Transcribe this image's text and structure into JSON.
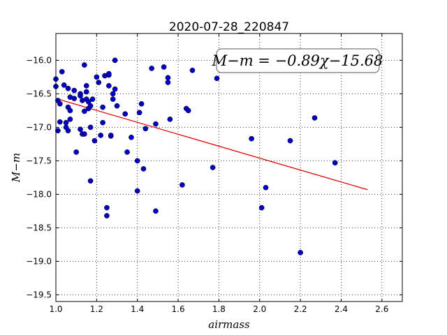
{
  "chart_data": {
    "type": "scatter",
    "title": "2020-07-28_220847",
    "xlabel": "airmass",
    "ylabel": "M−m",
    "xlim": [
      1.0,
      2.7
    ],
    "ylim": [
      -19.6,
      -15.6
    ],
    "y_inverted": false,
    "grid": true,
    "xticks": [
      1.0,
      1.2,
      1.4,
      1.6,
      1.8,
      2.0,
      2.2,
      2.4,
      2.6
    ],
    "xtick_labels": [
      "1.0",
      "1.2",
      "1.4",
      "1.6",
      "1.8",
      "2.0",
      "2.2",
      "2.4",
      "2.6"
    ],
    "yticks": [
      -16.0,
      -16.5,
      -17.0,
      -17.5,
      -18.0,
      -18.5,
      -19.0,
      -19.5
    ],
    "ytick_labels": [
      "−16.0",
      "−16.5",
      "−17.0",
      "−17.5",
      "−18.0",
      "−18.5",
      "−19.0",
      "−19.5"
    ],
    "annotation": "M−m = −0.89χ−15.68",
    "annotation_placement": "top-right",
    "fit": {
      "slope": -0.89,
      "intercept": -15.68,
      "x_start": 1.01,
      "x_end": 2.53
    },
    "colors": {
      "points": "#0000c8",
      "fit_line": "#dd0000"
    },
    "points": [
      {
        "x": 1.0,
        "y": -16.28
      },
      {
        "x": 1.0,
        "y": -16.39
      },
      {
        "x": 1.01,
        "y": -16.6
      },
      {
        "x": 1.01,
        "y": -17.05
      },
      {
        "x": 1.02,
        "y": -16.65
      },
      {
        "x": 1.02,
        "y": -16.92
      },
      {
        "x": 1.03,
        "y": -16.17
      },
      {
        "x": 1.04,
        "y": -16.37
      },
      {
        "x": 1.05,
        "y": -16.93
      },
      {
        "x": 1.05,
        "y": -17.0
      },
      {
        "x": 1.06,
        "y": -17.05
      },
      {
        "x": 1.06,
        "y": -16.42
      },
      {
        "x": 1.06,
        "y": -16.7
      },
      {
        "x": 1.07,
        "y": -16.88
      },
      {
        "x": 1.07,
        "y": -16.75
      },
      {
        "x": 1.07,
        "y": -16.55
      },
      {
        "x": 1.09,
        "y": -16.57
      },
      {
        "x": 1.09,
        "y": -16.45
      },
      {
        "x": 1.1,
        "y": -17.37
      },
      {
        "x": 1.12,
        "y": -16.5
      },
      {
        "x": 1.12,
        "y": -16.53
      },
      {
        "x": 1.12,
        "y": -17.03
      },
      {
        "x": 1.13,
        "y": -17.1
      },
      {
        "x": 1.13,
        "y": -16.6
      },
      {
        "x": 1.14,
        "y": -17.1
      },
      {
        "x": 1.14,
        "y": -16.07
      },
      {
        "x": 1.14,
        "y": -16.76
      },
      {
        "x": 1.15,
        "y": -16.58
      },
      {
        "x": 1.15,
        "y": -16.47
      },
      {
        "x": 1.15,
        "y": -16.38
      },
      {
        "x": 1.16,
        "y": -16.72
      },
      {
        "x": 1.16,
        "y": -16.62
      },
      {
        "x": 1.17,
        "y": -17.0
      },
      {
        "x": 1.17,
        "y": -16.68
      },
      {
        "x": 1.17,
        "y": -17.8
      },
      {
        "x": 1.18,
        "y": -16.58
      },
      {
        "x": 1.19,
        "y": -17.2
      },
      {
        "x": 1.2,
        "y": -16.25
      },
      {
        "x": 1.21,
        "y": -16.33
      },
      {
        "x": 1.22,
        "y": -17.12
      },
      {
        "x": 1.23,
        "y": -16.93
      },
      {
        "x": 1.23,
        "y": -16.7
      },
      {
        "x": 1.24,
        "y": -16.23
      },
      {
        "x": 1.25,
        "y": -18.32
      },
      {
        "x": 1.25,
        "y": -18.2
      },
      {
        "x": 1.26,
        "y": -16.22
      },
      {
        "x": 1.26,
        "y": -16.38
      },
      {
        "x": 1.26,
        "y": -16.2
      },
      {
        "x": 1.27,
        "y": -17.13
      },
      {
        "x": 1.27,
        "y": -17.12
      },
      {
        "x": 1.28,
        "y": -16.58
      },
      {
        "x": 1.28,
        "y": -16.5
      },
      {
        "x": 1.29,
        "y": -16.0
      },
      {
        "x": 1.29,
        "y": -16.43
      },
      {
        "x": 1.3,
        "y": -16.68
      },
      {
        "x": 1.34,
        "y": -16.8
      },
      {
        "x": 1.35,
        "y": -17.37
      },
      {
        "x": 1.37,
        "y": -17.15
      },
      {
        "x": 1.4,
        "y": -17.95
      },
      {
        "x": 1.4,
        "y": -17.5
      },
      {
        "x": 1.41,
        "y": -16.78
      },
      {
        "x": 1.42,
        "y": -16.65
      },
      {
        "x": 1.43,
        "y": -17.62
      },
      {
        "x": 1.44,
        "y": -17.02
      },
      {
        "x": 1.47,
        "y": -16.12
      },
      {
        "x": 1.49,
        "y": -16.95
      },
      {
        "x": 1.49,
        "y": -18.25
      },
      {
        "x": 1.53,
        "y": -16.1
      },
      {
        "x": 1.55,
        "y": -16.26
      },
      {
        "x": 1.55,
        "y": -16.33
      },
      {
        "x": 1.56,
        "y": -16.88
      },
      {
        "x": 1.62,
        "y": -17.86
      },
      {
        "x": 1.64,
        "y": -16.72
      },
      {
        "x": 1.65,
        "y": -16.75
      },
      {
        "x": 1.67,
        "y": -16.15
      },
      {
        "x": 1.77,
        "y": -17.6
      },
      {
        "x": 1.79,
        "y": -16.27
      },
      {
        "x": 1.96,
        "y": -17.17
      },
      {
        "x": 2.01,
        "y": -18.2
      },
      {
        "x": 2.03,
        "y": -17.9
      },
      {
        "x": 2.15,
        "y": -17.2
      },
      {
        "x": 2.2,
        "y": -18.87
      },
      {
        "x": 2.27,
        "y": -16.86
      },
      {
        "x": 2.37,
        "y": -17.53
      }
    ]
  }
}
